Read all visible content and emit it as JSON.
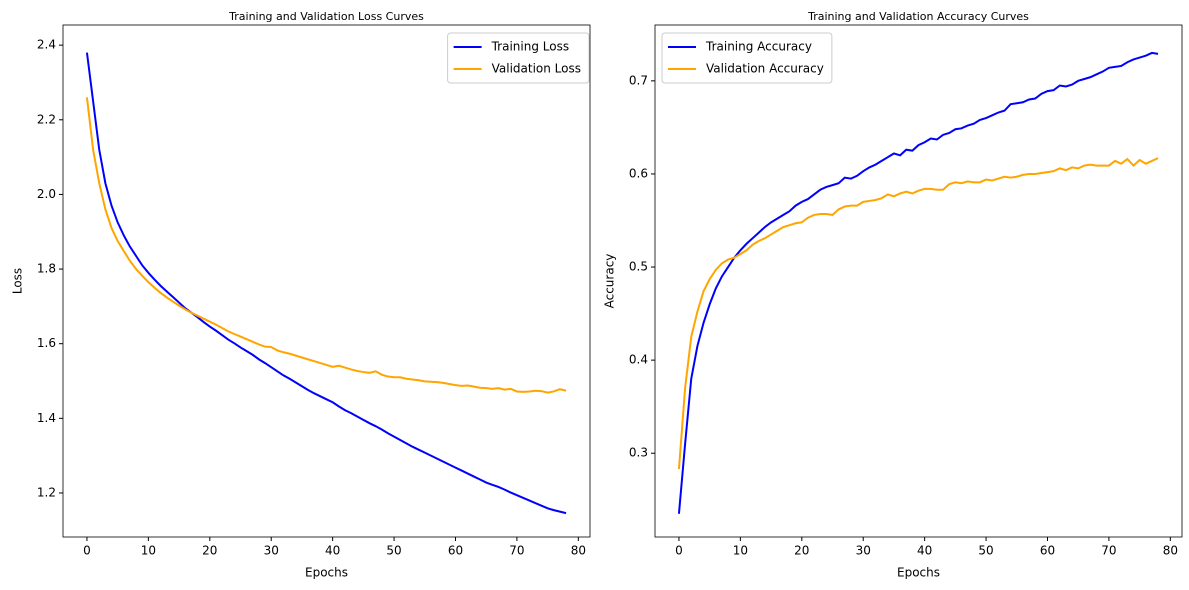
{
  "chart_data": [
    {
      "type": "line",
      "title": "Training and Validation Loss Curves",
      "xlabel": "Epochs",
      "ylabel": "Loss",
      "x": [
        0,
        1,
        2,
        3,
        4,
        5,
        6,
        7,
        8,
        9,
        10,
        11,
        12,
        13,
        14,
        15,
        16,
        17,
        18,
        19,
        20,
        21,
        22,
        23,
        24,
        25,
        26,
        27,
        28,
        29,
        30,
        31,
        32,
        33,
        34,
        35,
        36,
        37,
        38,
        39,
        40,
        41,
        42,
        43,
        44,
        45,
        46,
        47,
        48,
        49,
        50,
        51,
        52,
        53,
        54,
        55,
        56,
        57,
        58,
        59,
        60,
        61,
        62,
        63,
        64,
        65,
        66,
        67,
        68,
        69,
        70,
        71,
        72,
        73,
        74,
        75,
        76,
        77,
        78
      ],
      "series": [
        {
          "name": "Training Loss",
          "color": "#0000ff",
          "values": [
            2.38,
            2.25,
            2.12,
            2.03,
            1.97,
            1.925,
            1.89,
            1.86,
            1.835,
            1.81,
            1.79,
            1.772,
            1.755,
            1.74,
            1.725,
            1.71,
            1.695,
            1.683,
            1.671,
            1.658,
            1.646,
            1.635,
            1.623,
            1.611,
            1.601,
            1.59,
            1.58,
            1.57,
            1.558,
            1.548,
            1.537,
            1.526,
            1.515,
            1.506,
            1.496,
            1.486,
            1.476,
            1.467,
            1.459,
            1.451,
            1.443,
            1.432,
            1.422,
            1.414,
            1.405,
            1.396,
            1.387,
            1.379,
            1.37,
            1.36,
            1.351,
            1.342,
            1.333,
            1.324,
            1.316,
            1.308,
            1.3,
            1.292,
            1.284,
            1.276,
            1.268,
            1.26,
            1.252,
            1.244,
            1.236,
            1.228,
            1.222,
            1.216,
            1.209,
            1.201,
            1.194,
            1.187,
            1.18,
            1.173,
            1.166,
            1.159,
            1.154,
            1.15,
            1.146
          ]
        },
        {
          "name": "Validation Loss",
          "color": "#ffa500",
          "values": [
            2.26,
            2.12,
            2.03,
            1.96,
            1.91,
            1.875,
            1.848,
            1.822,
            1.8,
            1.782,
            1.765,
            1.75,
            1.736,
            1.724,
            1.713,
            1.702,
            1.692,
            1.683,
            1.675,
            1.667,
            1.659,
            1.651,
            1.642,
            1.633,
            1.626,
            1.619,
            1.612,
            1.605,
            1.598,
            1.592,
            1.591,
            1.582,
            1.577,
            1.573,
            1.568,
            1.563,
            1.558,
            1.553,
            1.548,
            1.543,
            1.538,
            1.541,
            1.536,
            1.531,
            1.527,
            1.524,
            1.522,
            1.526,
            1.517,
            1.512,
            1.51,
            1.51,
            1.506,
            1.504,
            1.502,
            1.499,
            1.498,
            1.497,
            1.495,
            1.492,
            1.489,
            1.487,
            1.488,
            1.485,
            1.482,
            1.481,
            1.479,
            1.481,
            1.477,
            1.479,
            1.472,
            1.471,
            1.472,
            1.474,
            1.473,
            1.469,
            1.472,
            1.478,
            1.474
          ]
        }
      ],
      "xlim": [
        -3.9,
        81.9
      ],
      "ylim": [
        1.082,
        2.454
      ],
      "xticks": [
        0,
        10,
        20,
        30,
        40,
        50,
        60,
        70,
        80
      ],
      "yticks": [
        1.2,
        1.4,
        1.6,
        1.8,
        {
          "value": 2,
          "label": "2.0"
        },
        2.2,
        2.4
      ],
      "legend": "upper-right"
    },
    {
      "type": "line",
      "title": "Training and Validation Accuracy Curves",
      "xlabel": "Epochs",
      "ylabel": "Accuracy",
      "x": [
        0,
        1,
        2,
        3,
        4,
        5,
        6,
        7,
        8,
        9,
        10,
        11,
        12,
        13,
        14,
        15,
        16,
        17,
        18,
        19,
        20,
        21,
        22,
        23,
        24,
        25,
        26,
        27,
        28,
        29,
        30,
        31,
        32,
        33,
        34,
        35,
        36,
        37,
        38,
        39,
        40,
        41,
        42,
        43,
        44,
        45,
        46,
        47,
        48,
        49,
        50,
        51,
        52,
        53,
        54,
        55,
        56,
        57,
        58,
        59,
        60,
        61,
        62,
        63,
        64,
        65,
        66,
        67,
        68,
        69,
        70,
        71,
        72,
        73,
        74,
        75,
        76,
        77,
        78
      ],
      "series": [
        {
          "name": "Training Accuracy",
          "color": "#0000ff",
          "values": [
            0.235,
            0.31,
            0.38,
            0.415,
            0.44,
            0.46,
            0.477,
            0.49,
            0.5,
            0.51,
            0.518,
            0.525,
            0.531,
            0.537,
            0.543,
            0.548,
            0.552,
            0.556,
            0.56,
            0.566,
            0.57,
            0.573,
            0.578,
            0.583,
            0.586,
            0.588,
            0.59,
            0.596,
            0.595,
            0.598,
            0.603,
            0.607,
            0.61,
            0.614,
            0.618,
            0.622,
            0.62,
            0.626,
            0.625,
            0.631,
            0.634,
            0.638,
            0.637,
            0.642,
            0.644,
            0.648,
            0.649,
            0.652,
            0.654,
            0.658,
            0.66,
            0.663,
            0.666,
            0.668,
            0.675,
            0.676,
            0.677,
            0.68,
            0.681,
            0.686,
            0.689,
            0.69,
            0.695,
            0.694,
            0.696,
            0.7,
            0.702,
            0.704,
            0.707,
            0.71,
            0.714,
            0.715,
            0.716,
            0.72,
            0.723,
            0.725,
            0.727,
            0.73,
            0.729
          ]
        },
        {
          "name": "Validation Accuracy",
          "color": "#ffa500",
          "values": [
            0.283,
            0.37,
            0.425,
            0.452,
            0.474,
            0.487,
            0.497,
            0.504,
            0.508,
            0.51,
            0.514,
            0.518,
            0.524,
            0.528,
            0.531,
            0.535,
            0.539,
            0.543,
            0.545,
            0.547,
            0.548,
            0.553,
            0.556,
            0.557,
            0.557,
            0.556,
            0.562,
            0.565,
            0.566,
            0.566,
            0.57,
            0.571,
            0.572,
            0.574,
            0.578,
            0.576,
            0.579,
            0.581,
            0.579,
            0.582,
            0.584,
            0.584,
            0.583,
            0.583,
            0.589,
            0.591,
            0.59,
            0.592,
            0.591,
            0.591,
            0.594,
            0.593,
            0.595,
            0.597,
            0.596,
            0.597,
            0.599,
            0.6,
            0.6,
            0.601,
            0.602,
            0.603,
            0.606,
            0.604,
            0.607,
            0.606,
            0.609,
            0.61,
            0.609,
            0.609,
            0.609,
            0.614,
            0.611,
            0.616,
            0.609,
            0.615,
            0.611,
            0.614,
            0.617
          ]
        }
      ],
      "xlim": [
        -3.9,
        81.9
      ],
      "ylim": [
        0.21,
        0.76
      ],
      "xticks": [
        0,
        10,
        20,
        30,
        40,
        50,
        60,
        70,
        80
      ],
      "yticks": [
        0.3,
        0.4,
        0.5,
        0.6,
        0.7
      ],
      "legend": "upper-left"
    }
  ]
}
